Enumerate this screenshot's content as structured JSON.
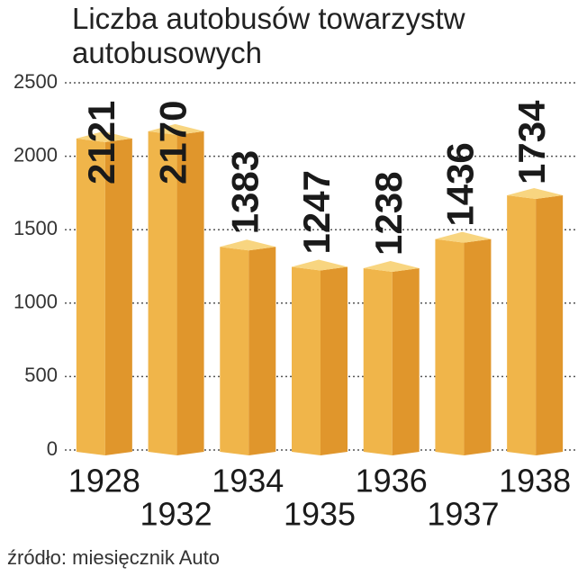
{
  "chart_data": {
    "type": "bar3d",
    "title": "Liczba autobusów towarzystw autobusowych",
    "source": "źródło: miesięcznik Auto",
    "categories": [
      "1928",
      "1932",
      "1934",
      "1935",
      "1936",
      "1937",
      "1938"
    ],
    "values": [
      2121,
      2170,
      1383,
      1247,
      1238,
      1436,
      1734
    ],
    "color": "#f0b54a",
    "side_color": "#e0962c",
    "top_color": "#f8d580",
    "ylim": [
      0,
      2500
    ],
    "yticks": [
      0,
      500,
      1000,
      1500,
      2000,
      2500
    ],
    "grid": true
  }
}
